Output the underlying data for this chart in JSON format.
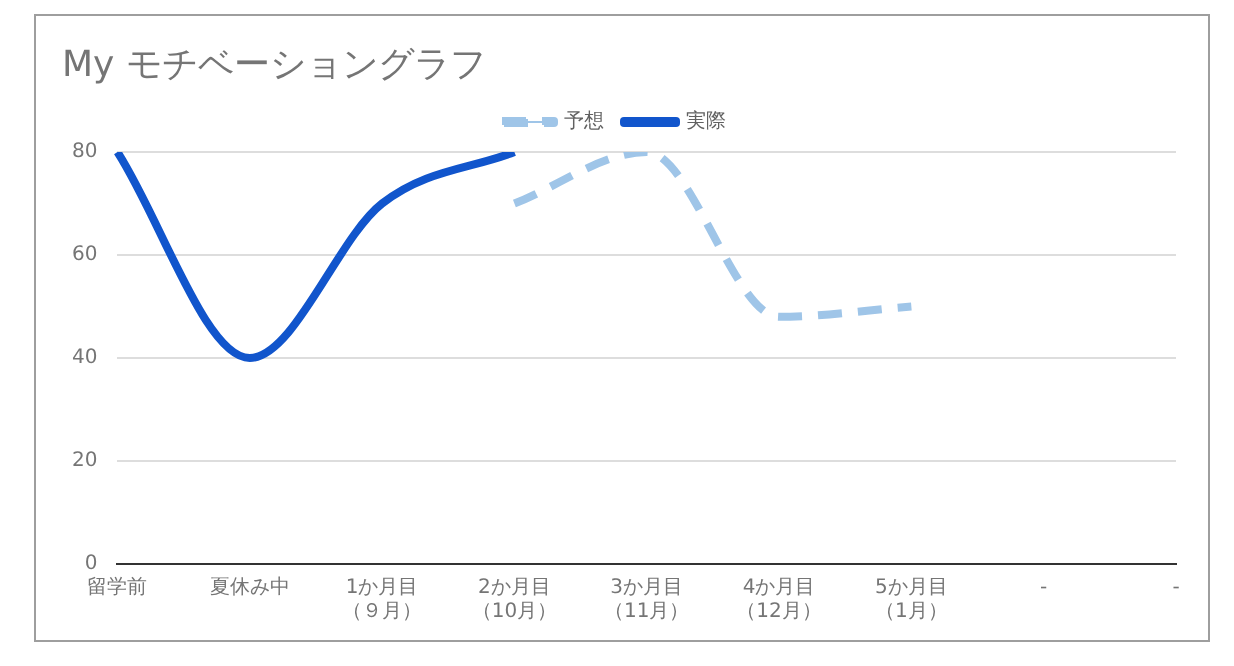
{
  "chart_data": {
    "type": "line",
    "title": "My モチベーショングラフ",
    "categories": [
      "留学前",
      "夏休み中",
      "1か月目（９月）",
      "2か月目（10月）",
      "3か月目（11月）",
      "4か月目（12月）",
      "5か月目（1月）",
      "-",
      "-"
    ],
    "series": [
      {
        "name": "予想",
        "color": "#9fc5e8",
        "line_style": "dashed",
        "values": [
          null,
          null,
          null,
          70,
          80,
          48,
          50,
          null,
          null
        ]
      },
      {
        "name": "実際",
        "color": "#1155cc",
        "line_style": "solid",
        "values": [
          80,
          40,
          70,
          80,
          null,
          null,
          null,
          null,
          null
        ]
      }
    ],
    "ylim": [
      0,
      80
    ],
    "yticks": [
      0,
      20,
      40,
      60,
      80
    ],
    "grid": "y",
    "legend": "top",
    "marker": "none"
  }
}
